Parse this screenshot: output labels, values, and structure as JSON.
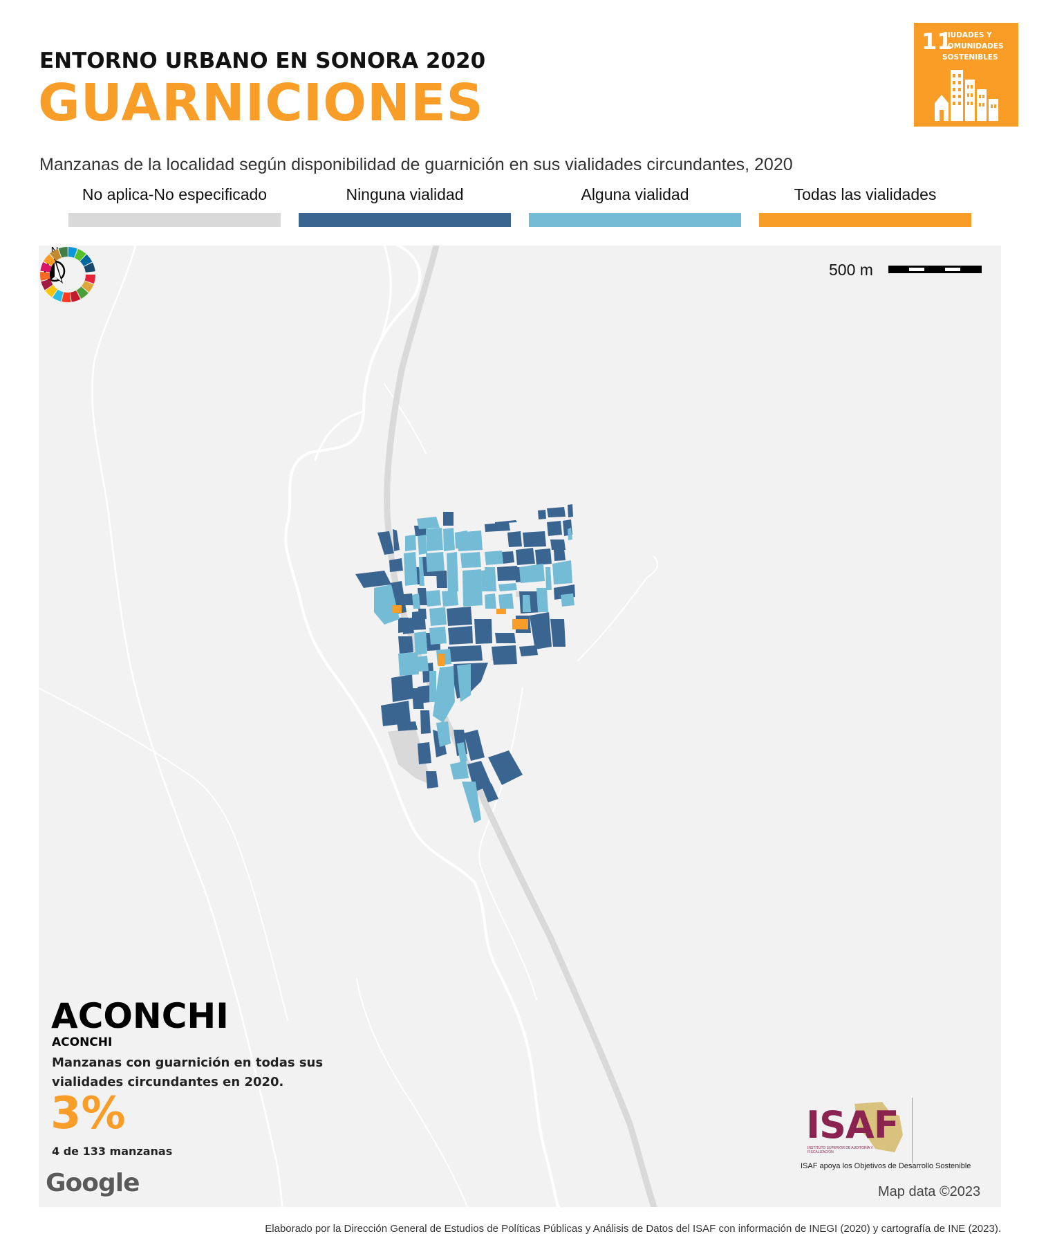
{
  "header": {
    "kicker": "ENTORNO URBANO EN SONORA 2020",
    "title": "GUARNICIONES",
    "subtitle": "Manzanas de la localidad según disponibilidad de guarnición en sus vialidades circundantes, 2020"
  },
  "sdg_badge": {
    "number": "11",
    "text": "CIUDADES Y\nCOMUNIDADES\nSOSTENIBLES",
    "color": "#f99d26",
    "icon": "city-buildings-icon"
  },
  "legend": [
    {
      "label": "No aplica-No especificado",
      "color": "#d9d9d9"
    },
    {
      "label": "Ninguna vialidad",
      "color": "#3a6591"
    },
    {
      "label": "Alguna vialidad",
      "color": "#74bcd6"
    },
    {
      "label": "Todas las vialidades",
      "color": "#f79d28"
    }
  ],
  "map": {
    "scale_label": "500 m",
    "north_label": "N",
    "map_data_credit": "Map data ©2023",
    "google_logo": "Google",
    "background_color": "#f2f2f2"
  },
  "locality": {
    "name": "ACONCHI",
    "municipality": "ACONCHI",
    "description": "Manzanas con guarnición en todas sus vialidades circundantes en 2020.",
    "percent": "3%",
    "count_text": "4 de 133 manzanas"
  },
  "partner": {
    "logo_text": "ISAF",
    "logo_small": "INSTITUTO SUPERIOR DE AUDITORÍA Y FISCALIZACIÓN",
    "caption": "ISAF apoya los Objetivos de Desarrollo Sostenible",
    "brand_color": "#8a2350"
  },
  "footer": "Elaborado por la Dirección General de Estudios de Políticas Públicas y Análisis de Datos del ISAF con información de INEGI (2020) y cartografía de INE (2023)."
}
